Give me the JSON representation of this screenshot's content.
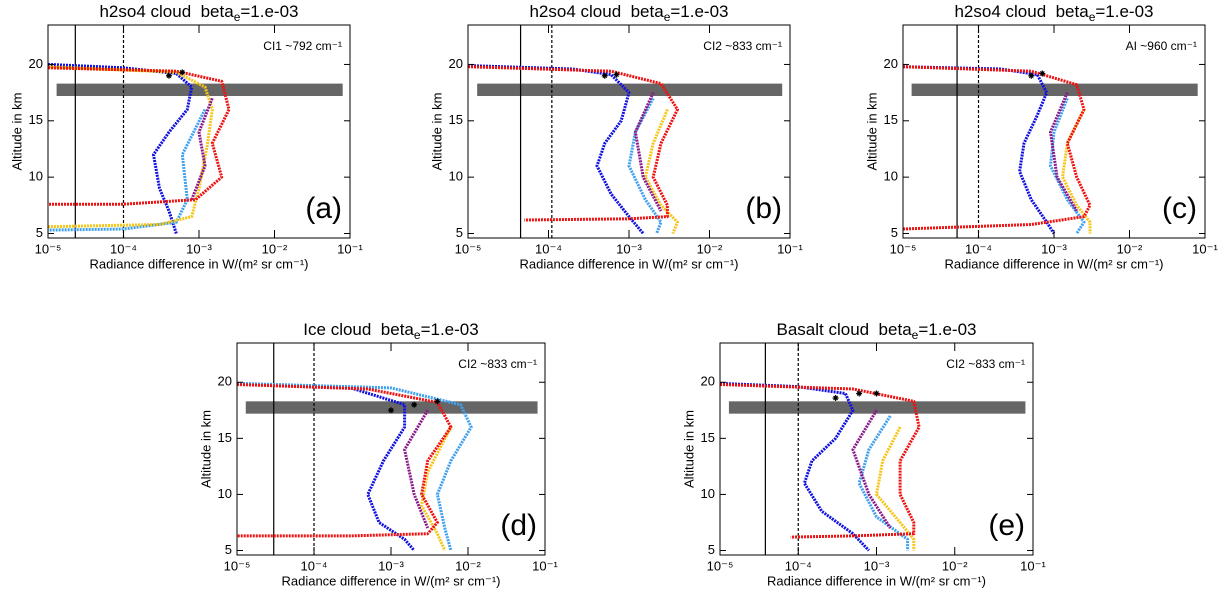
{
  "chart_data": [
    {
      "type": "line",
      "xscale": "log",
      "title": [
        "h2so4 cloud  beta",
        "e",
        "=1.e-03"
      ],
      "annotation": "CI1 ~792 cm⁻¹",
      "panel_label": "(a)",
      "xlabel": "Radiance difference in W/(m² sr cm⁻¹)",
      "ylabel": "Altitude in km",
      "xlim": [
        1e-05,
        0.1
      ],
      "ylim": [
        4.6,
        23.5
      ],
      "xticks": [
        {
          "value": 1e-05,
          "label": "10⁻⁵"
        },
        {
          "value": 0.0001,
          "label": "10⁻⁴"
        },
        {
          "value": 0.001,
          "label": "10⁻³"
        },
        {
          "value": 0.01,
          "label": "10⁻²"
        },
        {
          "value": 0.1,
          "label": "10⁻¹"
        }
      ],
      "yticks": [
        5,
        10,
        15,
        20
      ],
      "band": {
        "x": [
          1.3e-05,
          0.08
        ],
        "y": [
          17.2,
          18.3
        ],
        "color": "#666666"
      },
      "vlines": [
        {
          "x": 2.3e-05,
          "dashed": false
        },
        {
          "x": 0.0001,
          "dashed": true
        }
      ],
      "series": [
        {
          "color": "#1010e0",
          "x": [
            1e-05,
            0.0001,
            0.0005,
            0.0008,
            0.0007,
            0.0004,
            0.00025,
            0.0003,
            0.0004,
            0.0005
          ],
          "values": [
            20.0,
            19.7,
            19.2,
            18,
            16,
            14,
            12,
            9,
            7,
            5
          ]
        },
        {
          "color": "#3fa0f0",
          "x": [
            0.0012,
            0.0006,
            0.0007,
            0.0005,
            0.0001,
            1e-05
          ],
          "values": [
            16,
            12,
            8,
            6,
            5.4,
            5.3
          ]
        },
        {
          "color": "#f5c518",
          "x": [
            1e-05,
            0.0003,
            0.0008,
            0.001,
            0.0013,
            0.0015,
            0.0012,
            0.0005,
            1e-05
          ],
          "values": [
            5.6,
            5.8,
            6.5,
            9,
            13,
            16,
            18,
            19.3,
            19.8
          ]
        },
        {
          "color": "#8b1a8b",
          "x": [
            0.0015,
            0.001,
            0.0012,
            0.0008
          ],
          "values": [
            17,
            14,
            11,
            8
          ]
        },
        {
          "color": "#ee1111",
          "x": [
            1e-05,
            0.0005,
            0.002,
            0.0025,
            0.0015,
            0.002,
            0.0009,
            0.0001,
            1e-05
          ],
          "values": [
            19.7,
            19.4,
            18.5,
            16,
            13,
            10,
            8,
            7.6,
            7.6
          ]
        }
      ],
      "stars": {
        "x": [
          0.0004,
          0.0006
        ],
        "values": [
          19.0,
          19.3
        ]
      }
    },
    {
      "type": "line",
      "xscale": "log",
      "title": [
        "h2so4 cloud  beta",
        "e",
        "=1.e-03"
      ],
      "annotation": "CI2 ~833 cm⁻¹",
      "panel_label": "(b)",
      "xlabel": "Radiance difference in W/(m² sr cm⁻¹)",
      "ylabel": "Altitude in km",
      "xlim": [
        1e-05,
        0.1
      ],
      "ylim": [
        4.6,
        23.5
      ],
      "xticks": [
        {
          "value": 1e-05,
          "label": "10⁻⁵"
        },
        {
          "value": 0.0001,
          "label": "10⁻⁴"
        },
        {
          "value": 0.001,
          "label": "10⁻³"
        },
        {
          "value": 0.01,
          "label": "10⁻²"
        },
        {
          "value": 0.1,
          "label": "10⁻¹"
        }
      ],
      "yticks": [
        5,
        10,
        15,
        20
      ],
      "band": {
        "x": [
          1.3e-05,
          0.08
        ],
        "y": [
          17.2,
          18.3
        ],
        "color": "#666666"
      },
      "vlines": [
        {
          "x": 4.5e-05,
          "dashed": false
        },
        {
          "x": 0.00011,
          "dashed": true
        }
      ],
      "series": [
        {
          "color": "#1010e0",
          "x": [
            1e-05,
            0.0002,
            0.0006,
            0.001,
            0.0008,
            0.0005,
            0.0004,
            0.0006,
            0.001,
            0.0015
          ],
          "values": [
            19.9,
            19.6,
            19.1,
            17.5,
            15,
            13,
            11,
            8.5,
            6.5,
            5
          ]
        },
        {
          "color": "#3fa0f0",
          "x": [
            0.002,
            0.0012,
            0.001,
            0.0016,
            0.0025,
            0.0022
          ],
          "values": [
            17,
            14,
            11,
            8,
            6,
            5
          ]
        },
        {
          "color": "#f5c518",
          "x": [
            0.003,
            0.002,
            0.0016,
            0.0025,
            0.004,
            0.0035
          ],
          "values": [
            16,
            13,
            10,
            7.5,
            6,
            5
          ]
        },
        {
          "color": "#8b1a8b",
          "x": [
            0.002,
            0.0012,
            0.0015,
            0.0025
          ],
          "values": [
            17.5,
            14,
            10,
            7
          ]
        },
        {
          "color": "#ee1111",
          "x": [
            1e-05,
            0.0006,
            0.0025,
            0.004,
            0.0025,
            0.002,
            0.003,
            0.003,
            0.001,
            5e-05
          ],
          "values": [
            19.8,
            19.4,
            18.3,
            16,
            13,
            10,
            7.5,
            6.5,
            6.3,
            6.2
          ]
        }
      ],
      "stars": {
        "x": [
          0.0005,
          0.0007
        ],
        "values": [
          19.0,
          19.1
        ]
      }
    },
    {
      "type": "line",
      "xscale": "log",
      "title": [
        "h2so4 cloud  beta",
        "e",
        "=1.e-03"
      ],
      "annotation": "AI ~960 cm⁻¹",
      "panel_label": "(c)",
      "xlabel": "Radiance difference in W/(m² sr cm⁻¹)",
      "ylabel": "Altitude in km",
      "xlim": [
        1e-05,
        0.1
      ],
      "ylim": [
        4.6,
        23.5
      ],
      "xticks": [
        {
          "value": 1e-05,
          "label": "10⁻⁵"
        },
        {
          "value": 0.0001,
          "label": "10⁻⁴"
        },
        {
          "value": 0.001,
          "label": "10⁻³"
        },
        {
          "value": 0.01,
          "label": "10⁻²"
        },
        {
          "value": 0.1,
          "label": "10⁻¹"
        }
      ],
      "yticks": [
        5,
        10,
        15,
        20
      ],
      "band": {
        "x": [
          1.3e-05,
          0.08
        ],
        "y": [
          17.2,
          18.3
        ],
        "color": "#666666"
      },
      "vlines": [
        {
          "x": 5.2e-05,
          "dashed": false
        },
        {
          "x": 0.0001,
          "dashed": true
        }
      ],
      "series": [
        {
          "color": "#1010e0",
          "x": [
            1e-05,
            0.0002,
            0.0006,
            0.0008,
            0.0006,
            0.0004,
            0.00035,
            0.0005,
            0.0008,
            0.001
          ],
          "values": [
            19.8,
            19.6,
            19.1,
            17.5,
            15.5,
            13,
            10.5,
            8,
            6,
            5
          ]
        },
        {
          "color": "#3fa0f0",
          "x": [
            0.0015,
            0.001,
            0.0009,
            0.0015,
            0.0025,
            0.002
          ],
          "values": [
            17,
            14,
            11,
            8,
            6,
            5
          ]
        },
        {
          "color": "#f5c518",
          "x": [
            0.0025,
            0.0015,
            0.0013,
            0.002,
            0.003,
            0.003
          ],
          "values": [
            16,
            13,
            10,
            7.5,
            6,
            5
          ]
        },
        {
          "color": "#8b1a8b",
          "x": [
            0.0015,
            0.0009,
            0.0011,
            0.002
          ],
          "values": [
            17.5,
            14,
            10,
            7
          ]
        },
        {
          "color": "#ee1111",
          "x": [
            1e-05,
            0.0005,
            0.002,
            0.0025,
            0.0015,
            0.002,
            0.003,
            0.0025,
            0.0005,
            1e-05
          ],
          "values": [
            19.8,
            19.4,
            18.2,
            16,
            13,
            10,
            7.5,
            6.5,
            5.8,
            5.4
          ]
        }
      ],
      "stars": {
        "x": [
          0.0005,
          0.0007
        ],
        "values": [
          19.0,
          19.2
        ]
      }
    },
    {
      "type": "line",
      "xscale": "log",
      "title": [
        "Ice cloud  beta",
        "e",
        "=1.e-03"
      ],
      "annotation": "CI2 ~833 cm⁻¹",
      "panel_label": "(d)",
      "xlabel": "Radiance difference in W/(m² sr cm⁻¹)",
      "ylabel": "Altitude in km",
      "xlim": [
        1e-05,
        0.1
      ],
      "ylim": [
        4.6,
        23.5
      ],
      "xticks": [
        {
          "value": 1e-05,
          "label": "10⁻⁵"
        },
        {
          "value": 0.0001,
          "label": "10⁻⁴"
        },
        {
          "value": 0.001,
          "label": "10⁻³"
        },
        {
          "value": 0.01,
          "label": "10⁻²"
        },
        {
          "value": 0.1,
          "label": "10⁻¹"
        }
      ],
      "yticks": [
        5,
        10,
        15,
        20
      ],
      "band": {
        "x": [
          1.3e-05,
          0.08
        ],
        "y": [
          17.2,
          18.3
        ],
        "color": "#666666"
      },
      "vlines": [
        {
          "x": 3e-05,
          "dashed": false
        },
        {
          "x": 0.0001,
          "dashed": true
        }
      ],
      "series": [
        {
          "color": "#1010e0",
          "x": [
            1e-05,
            0.0003,
            0.0015,
            0.0015,
            0.0008,
            0.0005,
            0.0007,
            0.0015,
            0.002
          ],
          "values": [
            19.9,
            19.5,
            18,
            16,
            13,
            10,
            7.5,
            6,
            5
          ]
        },
        {
          "color": "#3fa0f0",
          "x": [
            1e-05,
            0.001,
            0.008,
            0.011,
            0.006,
            0.004,
            0.005,
            0.006
          ],
          "values": [
            19.9,
            19.5,
            18,
            16,
            13,
            10,
            7,
            5
          ]
        },
        {
          "color": "#f5c518",
          "x": [
            0.006,
            0.003,
            0.0025,
            0.004,
            0.005
          ],
          "values": [
            16,
            12,
            9,
            6.5,
            5
          ]
        },
        {
          "color": "#8b1a8b",
          "x": [
            0.003,
            0.0015,
            0.002,
            0.003
          ],
          "values": [
            17.5,
            14,
            10,
            7
          ]
        },
        {
          "color": "#ee1111",
          "x": [
            1e-05,
            0.0005,
            0.004,
            0.006,
            0.003,
            0.0025,
            0.004,
            0.003,
            0.0003,
            1e-05
          ],
          "values": [
            19.8,
            19.4,
            18.2,
            16,
            13,
            10,
            7.5,
            6.5,
            6.3,
            6.3
          ]
        }
      ],
      "stars": {
        "x": [
          0.001,
          0.002,
          0.004
        ],
        "values": [
          17.5,
          18.0,
          18.3
        ]
      }
    },
    {
      "type": "line",
      "xscale": "log",
      "title": [
        "Basalt cloud  beta",
        "e",
        "=1.e-03"
      ],
      "annotation": "CI2 ~833 cm⁻¹",
      "panel_label": "(e)",
      "xlabel": "Radiance difference in W/(m² sr cm⁻¹)",
      "ylabel": "Altitude in km",
      "xlim": [
        1e-05,
        0.1
      ],
      "ylim": [
        4.6,
        23.5
      ],
      "xticks": [
        {
          "value": 1e-05,
          "label": "10⁻⁵"
        },
        {
          "value": 0.0001,
          "label": "10⁻⁴"
        },
        {
          "value": 0.001,
          "label": "10⁻³"
        },
        {
          "value": 0.01,
          "label": "10⁻²"
        },
        {
          "value": 0.1,
          "label": "10⁻¹"
        }
      ],
      "yticks": [
        5,
        10,
        15,
        20
      ],
      "band": {
        "x": [
          1.3e-05,
          0.08
        ],
        "y": [
          17.2,
          18.3
        ],
        "color": "#666666"
      },
      "vlines": [
        {
          "x": 3.8e-05,
          "dashed": false
        },
        {
          "x": 0.0001,
          "dashed": true
        }
      ],
      "series": [
        {
          "color": "#1010e0",
          "x": [
            1e-05,
            0.0001,
            0.0004,
            0.0005,
            0.0003,
            0.00015,
            0.00012,
            0.0002,
            0.0005,
            0.0008
          ],
          "values": [
            19.9,
            19.6,
            19,
            17.5,
            15,
            13,
            11,
            8.5,
            6.5,
            5
          ]
        },
        {
          "color": "#3fa0f0",
          "x": [
            0.0015,
            0.0008,
            0.0006,
            0.001,
            0.0025,
            0.0025
          ],
          "values": [
            17,
            14,
            11,
            8,
            6,
            5
          ]
        },
        {
          "color": "#f5c518",
          "x": [
            0.002,
            0.0012,
            0.001,
            0.002,
            0.003,
            0.003
          ],
          "values": [
            16,
            13,
            10,
            7.5,
            6,
            5
          ]
        },
        {
          "color": "#8b1a8b",
          "x": [
            0.001,
            0.0005,
            0.0008,
            0.0015
          ],
          "values": [
            17.5,
            14,
            10,
            7
          ]
        },
        {
          "color": "#ee1111",
          "x": [
            1e-05,
            0.0005,
            0.003,
            0.0035,
            0.002,
            0.002,
            0.003,
            0.003,
            0.0005,
            8e-05
          ],
          "values": [
            19.8,
            19.4,
            18.3,
            16,
            13,
            10,
            7.5,
            6.5,
            6.3,
            6.2
          ]
        }
      ],
      "stars": {
        "x": [
          0.0003,
          0.0006,
          0.001
        ],
        "values": [
          18.6,
          19.0,
          19.0
        ]
      }
    }
  ]
}
